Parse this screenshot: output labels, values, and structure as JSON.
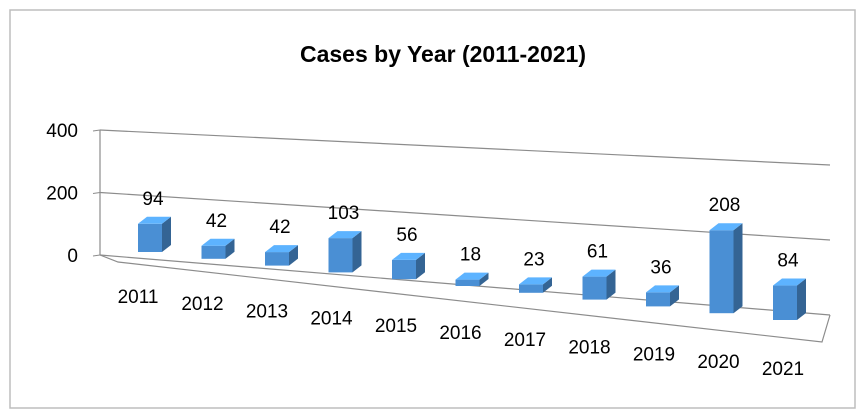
{
  "chart_data": {
    "type": "bar3d",
    "title": "Cases by Year (2011-2021)",
    "categories": [
      "2011",
      "2012",
      "2013",
      "2014",
      "2015",
      "2016",
      "2017",
      "2018",
      "2019",
      "2020",
      "2021"
    ],
    "values": [
      94,
      42,
      42,
      103,
      56,
      18,
      23,
      61,
      36,
      208,
      84
    ],
    "color": "#4a8fd4",
    "ylim": [
      0,
      400
    ],
    "yticks": [
      0,
      200,
      400
    ],
    "grid": true
  }
}
